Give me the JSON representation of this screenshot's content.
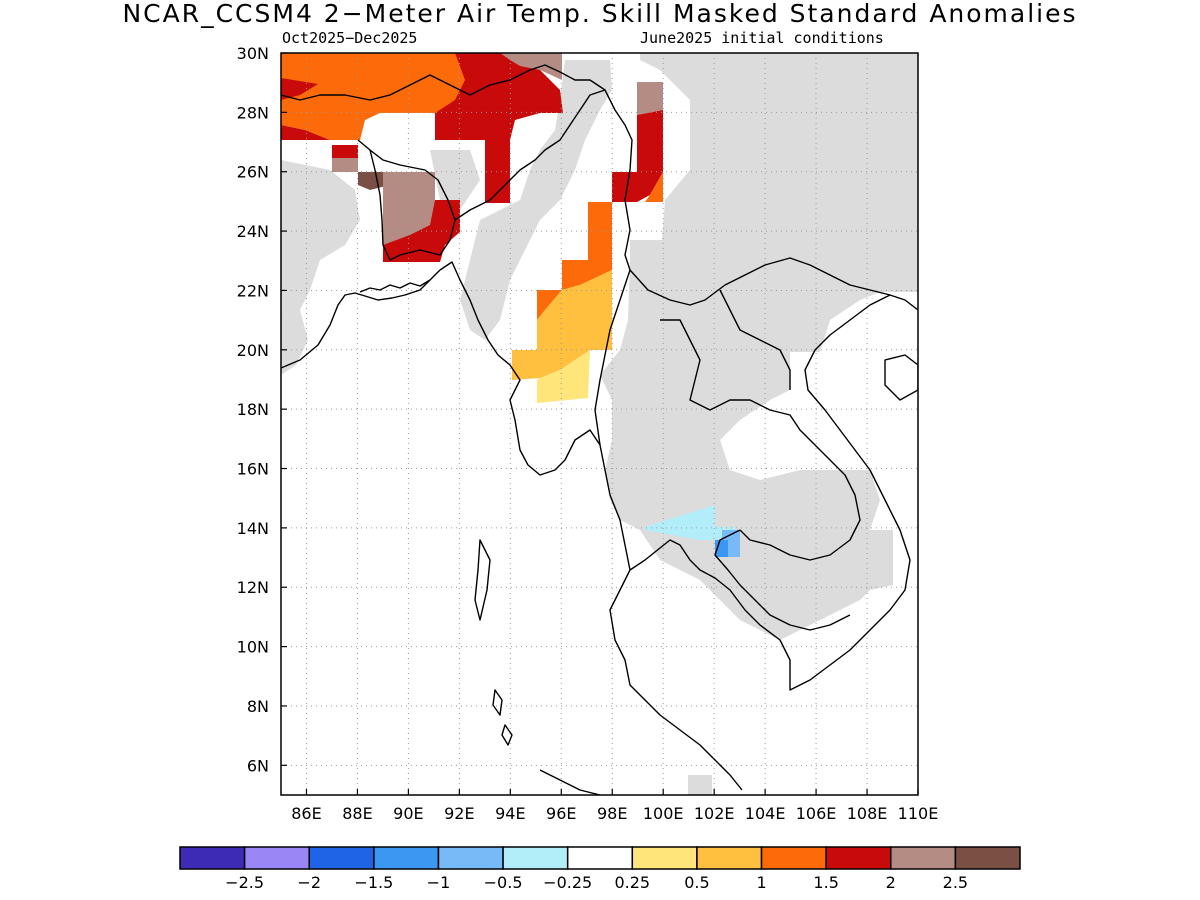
{
  "title": "NCAR_CCSM4 2−Meter Air Temp. Skill Masked Standard Anomalies",
  "subtitle_left": "Oct2025−Dec2025",
  "subtitle_right": "June2025 initial conditions",
  "map": {
    "lon_range": [
      85,
      110
    ],
    "lat_range": [
      5,
      30
    ],
    "lon_ticks": [
      "86E",
      "88E",
      "90E",
      "92E",
      "94E",
      "96E",
      "98E",
      "100E",
      "102E",
      "104E",
      "106E",
      "108E",
      "110E"
    ],
    "lat_ticks": [
      "30N",
      "28N",
      "26N",
      "24N",
      "22N",
      "20N",
      "18N",
      "16N",
      "14N",
      "12N",
      "10N",
      "8N",
      "6N"
    ],
    "grid": true,
    "masked_color": "#dcdcdc",
    "coastline_color": "#000000"
  },
  "colorbar": {
    "colors": [
      "#3d2bb5",
      "#9a87f5",
      "#1f64e6",
      "#3c97f2",
      "#78b9f7",
      "#b2eefa",
      "#ffffff",
      "#ffe57a",
      "#ffbf3f",
      "#fd6a0a",
      "#c80a0a",
      "#b48c84",
      "#7a5044"
    ],
    "labels": [
      "−2.5",
      "−2",
      "−1.5",
      "−1",
      "−0.5",
      "−0.25",
      "0.25",
      "0.5",
      "1",
      "1.5",
      "2",
      "2.5"
    ]
  }
}
